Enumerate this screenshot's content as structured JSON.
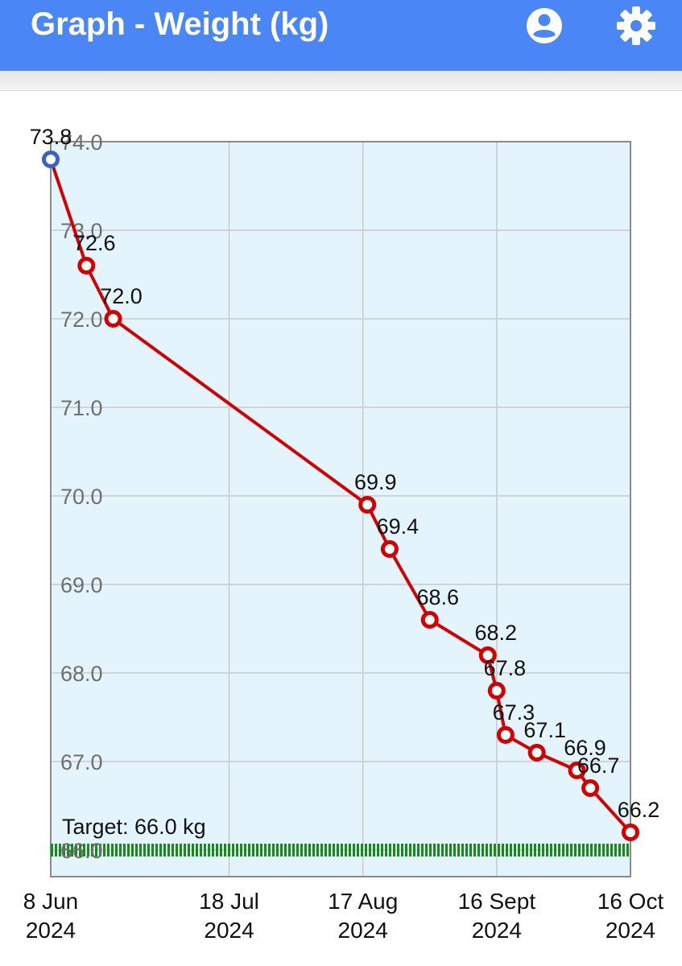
{
  "app": {
    "title": "Graph - Weight (kg)",
    "accent_color": "#4a86f5",
    "icons": [
      "account-icon",
      "settings-gear-icon"
    ]
  },
  "chart_data": {
    "type": "line",
    "x": [
      "2024-06-08",
      "2024-06-16",
      "2024-06-22",
      "2024-08-18",
      "2024-08-23",
      "2024-09-01",
      "2024-09-14",
      "2024-09-16",
      "2024-09-18",
      "2024-09-25",
      "2024-10-04",
      "2024-10-07",
      "2024-10-16"
    ],
    "series": [
      {
        "values": [
          73.8,
          72.6,
          72.0,
          69.9,
          69.4,
          68.6,
          68.2,
          67.8,
          67.3,
          67.1,
          66.9,
          66.7,
          66.2
        ]
      }
    ],
    "data_labels": [
      "73.8",
      "72.6",
      "72.0",
      "69.9",
      "69.4",
      "68.6",
      "68.2",
      "67.8",
      "67.3",
      "67.1",
      "66.9",
      "66.7",
      "66.2"
    ],
    "first_point_color": "#3b5fcf",
    "point_color": "#d40000",
    "line_color": "#d40000",
    "target": {
      "value": 66.0,
      "label": "Target: 66.0 kg",
      "color": "#1a8a1a"
    },
    "ylim": [
      65.7,
      74.0
    ],
    "yticks": [
      66.0,
      67.0,
      68.0,
      69.0,
      70.0,
      71.0,
      72.0,
      73.0,
      74.0
    ],
    "ytick_labels": [
      "66.0",
      "67.0",
      "68.0",
      "69.0",
      "70.0",
      "71.0",
      "72.0",
      "73.0",
      "74.0"
    ],
    "xlim": [
      "2024-06-08",
      "2024-10-16"
    ],
    "xticks": [
      {
        "date": "2024-06-08",
        "line1": "8 Jun",
        "line2": "2024"
      },
      {
        "date": "2024-07-18",
        "line1": "18 Jul",
        "line2": "2024"
      },
      {
        "date": "2024-08-17",
        "line1": "17 Aug",
        "line2": "2024"
      },
      {
        "date": "2024-09-16",
        "line1": "16 Sept",
        "line2": "2024"
      },
      {
        "date": "2024-10-16",
        "line1": "16 Oct",
        "line2": "2024"
      }
    ],
    "grid": true,
    "plot_background": "#e3f4fc"
  }
}
